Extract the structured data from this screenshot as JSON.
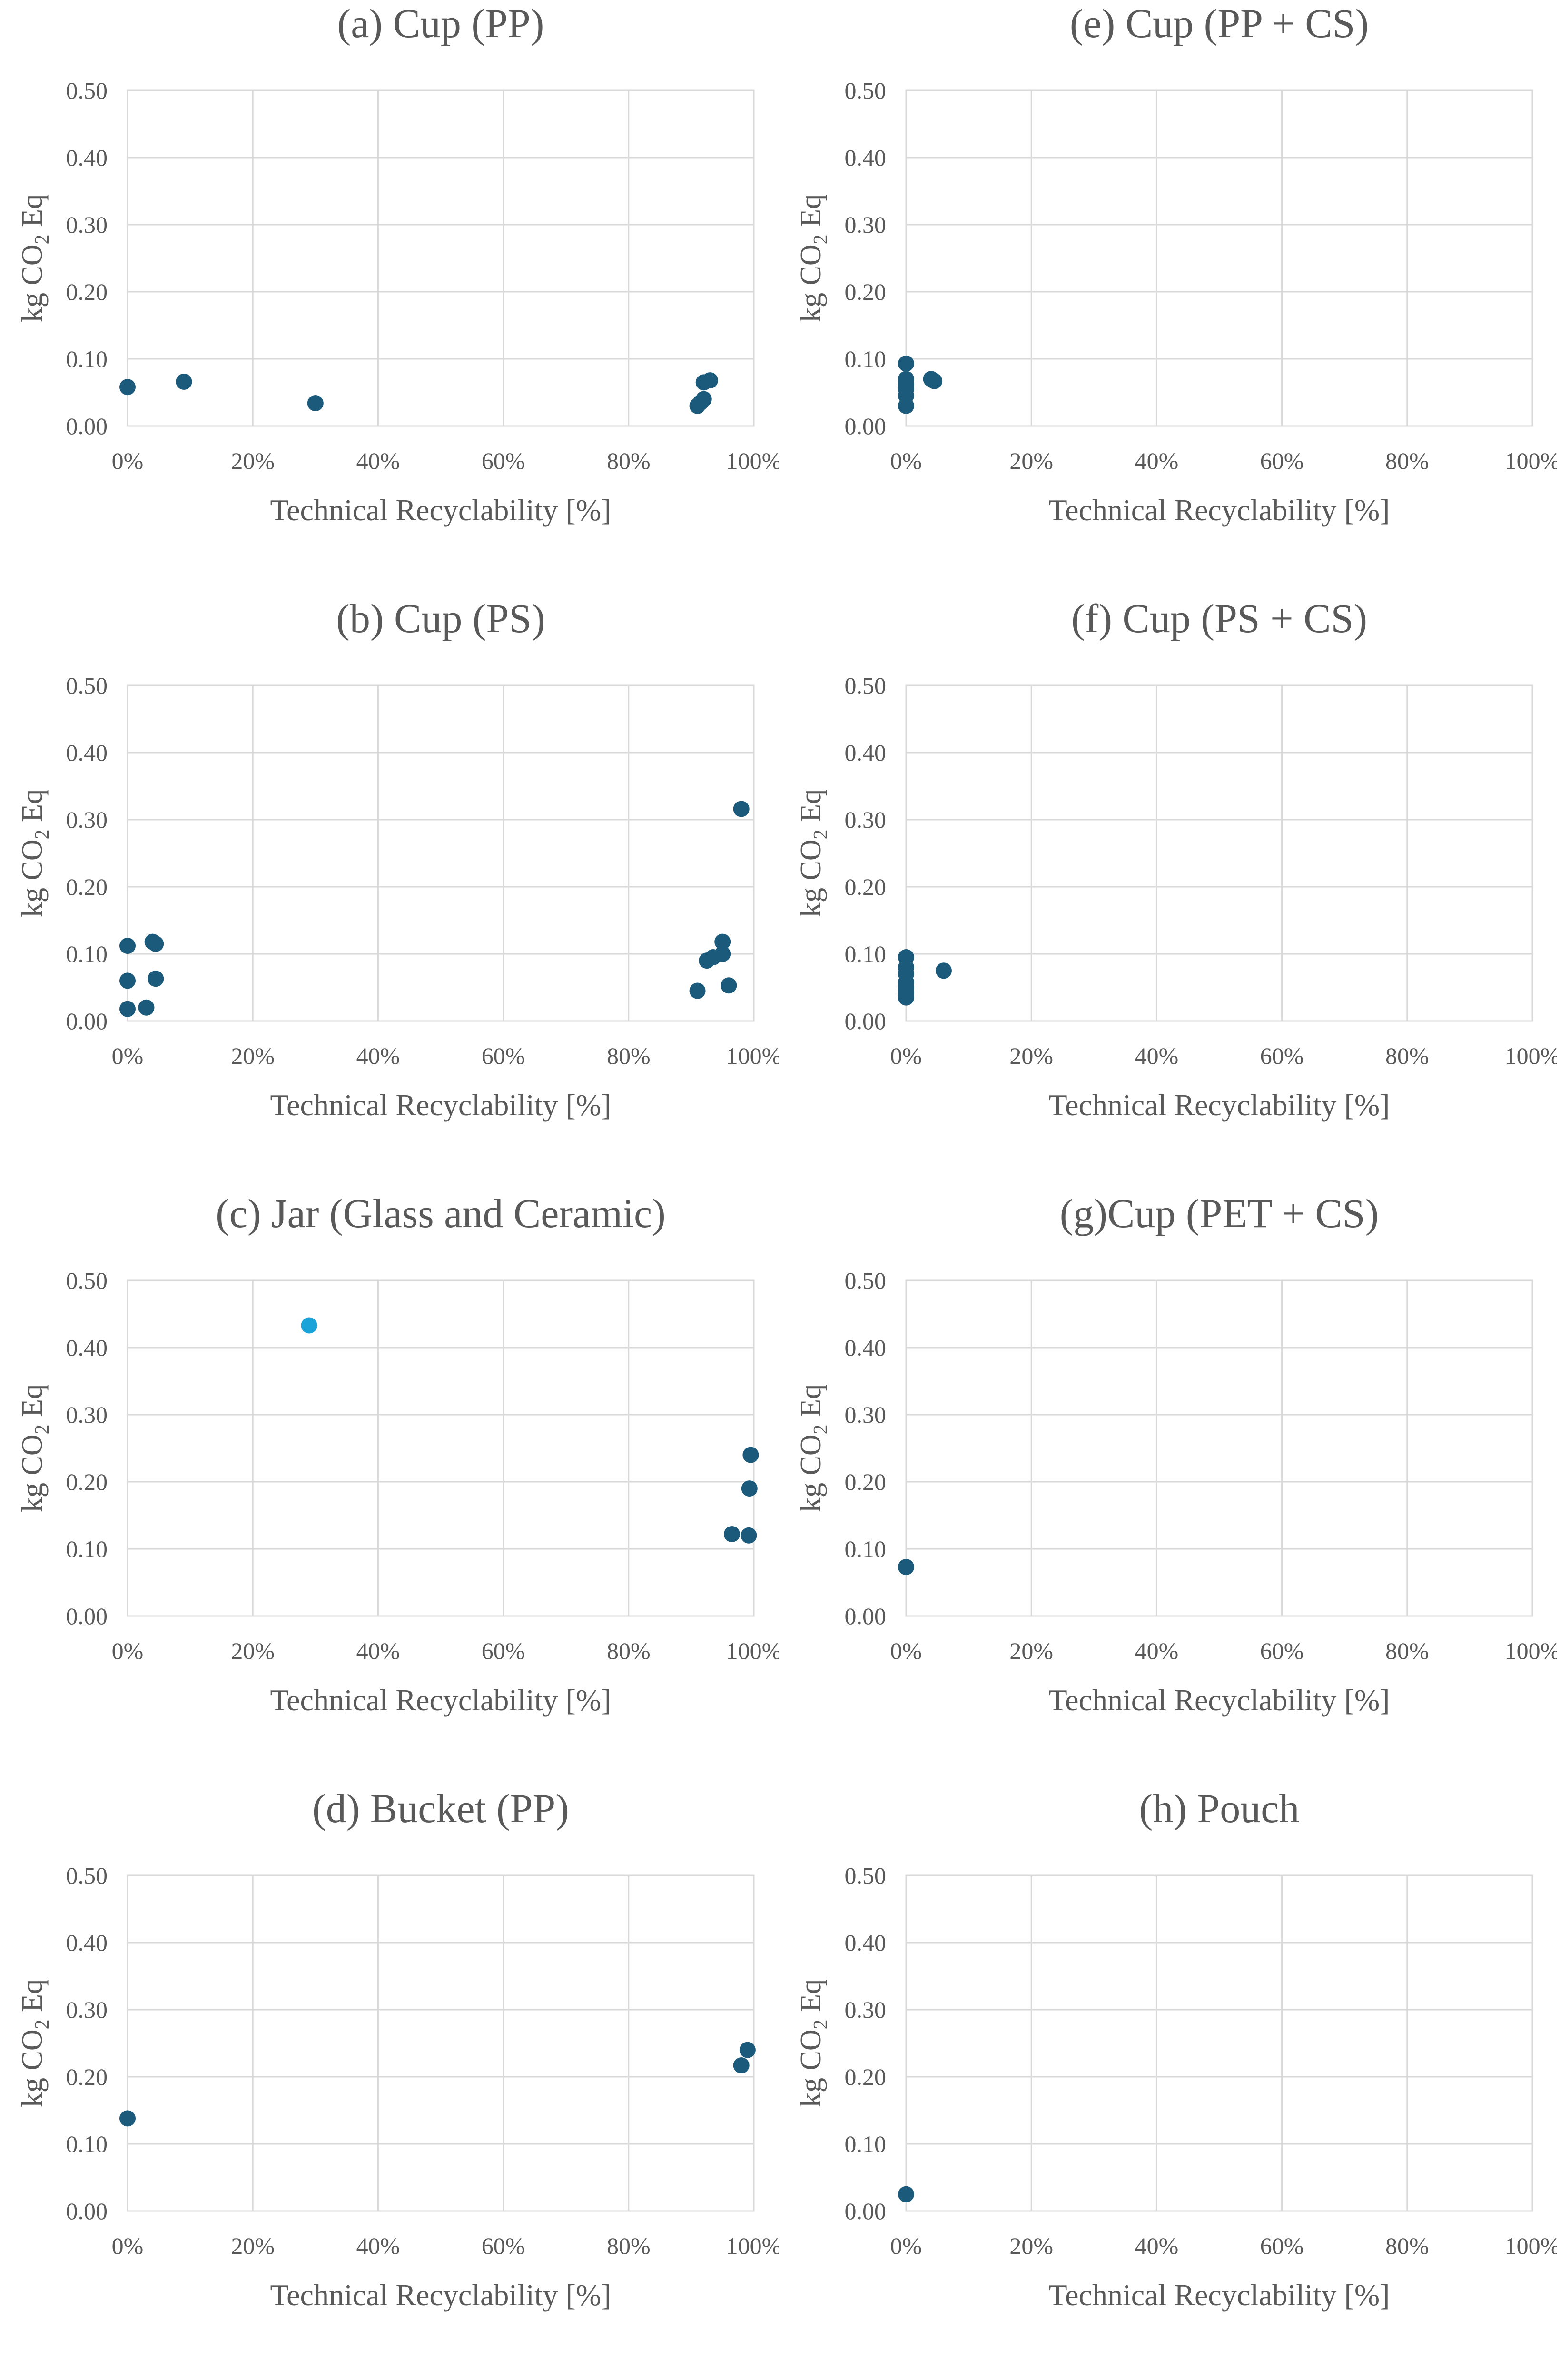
{
  "chart_data": [
    {
      "type": "scatter",
      "title": "(a) Cup (PP)",
      "xlabel": "Technical Recyclability [%]",
      "ylabel": "kg CO2 Eq",
      "ylabel_main": "kg CO",
      "ylabel_sub": "2",
      "ylabel_tail": " Eq",
      "xlim": [
        0,
        100
      ],
      "ylim": [
        0,
        0.5
      ],
      "x_ticks": [
        "0%",
        "20%",
        "40%",
        "60%",
        "80%",
        "100%"
      ],
      "y_ticks": [
        "0.00",
        "0.10",
        "0.20",
        "0.30",
        "0.40",
        "0.50"
      ],
      "grid": true,
      "series": [
        {
          "name": "Cup (PP)",
          "color": "#1b5a7a",
          "x": [
            0,
            9,
            30,
            91,
            91.5,
            92,
            92,
            93
          ],
          "y": [
            0.058,
            0.066,
            0.034,
            0.03,
            0.035,
            0.04,
            0.065,
            0.068
          ]
        }
      ]
    },
    {
      "type": "scatter",
      "title": "(e) Cup (PP + CS)",
      "xlabel": "Technical Recyclability [%]",
      "ylabel": "kg CO2 Eq",
      "ylabel_main": "kg CO",
      "ylabel_sub": "2",
      "ylabel_tail": " Eq",
      "xlim": [
        0,
        100
      ],
      "ylim": [
        0,
        0.5
      ],
      "x_ticks": [
        "0%",
        "20%",
        "40%",
        "60%",
        "80%",
        "100%"
      ],
      "y_ticks": [
        "0.00",
        "0.10",
        "0.20",
        "0.30",
        "0.40",
        "0.50"
      ],
      "grid": true,
      "series": [
        {
          "name": "Cup (PP + CS)",
          "color": "#1b5a7a",
          "x": [
            0,
            0,
            0,
            0,
            0,
            0,
            4,
            4.5
          ],
          "y": [
            0.093,
            0.07,
            0.062,
            0.055,
            0.045,
            0.03,
            0.07,
            0.067
          ]
        }
      ]
    },
    {
      "type": "scatter",
      "title": "(b) Cup (PS)",
      "xlabel": "Technical Recyclability [%]",
      "ylabel": "kg CO2 Eq",
      "ylabel_main": "kg CO",
      "ylabel_sub": "2",
      "ylabel_tail": " Eq",
      "xlim": [
        0,
        100
      ],
      "ylim": [
        0,
        0.5
      ],
      "x_ticks": [
        "0%",
        "20%",
        "40%",
        "60%",
        "80%",
        "100%"
      ],
      "y_ticks": [
        "0.00",
        "0.10",
        "0.20",
        "0.30",
        "0.40",
        "0.50"
      ],
      "grid": true,
      "series": [
        {
          "name": "Cup (PS)",
          "color": "#1b5a7a",
          "x": [
            0,
            0,
            0,
            3,
            4,
            4.5,
            4.5,
            91,
            92.5,
            93.5,
            95,
            95,
            96,
            98
          ],
          "y": [
            0.112,
            0.06,
            0.018,
            0.02,
            0.118,
            0.115,
            0.063,
            0.045,
            0.09,
            0.095,
            0.118,
            0.1,
            0.053,
            0.316
          ]
        }
      ]
    },
    {
      "type": "scatter",
      "title": "(f) Cup (PS + CS)",
      "xlabel": "Technical Recyclability [%]",
      "ylabel": "kg CO2 Eq",
      "ylabel_main": "kg CO",
      "ylabel_sub": "2",
      "ylabel_tail": " Eq",
      "xlim": [
        0,
        100
      ],
      "ylim": [
        0,
        0.5
      ],
      "x_ticks": [
        "0%",
        "20%",
        "40%",
        "60%",
        "80%",
        "100%"
      ],
      "y_ticks": [
        "0.00",
        "0.10",
        "0.20",
        "0.30",
        "0.40",
        "0.50"
      ],
      "grid": true,
      "series": [
        {
          "name": "Cup (PS + CS)",
          "color": "#1b5a7a",
          "x": [
            0,
            0,
            0,
            0,
            0,
            0,
            0,
            6
          ],
          "y": [
            0.095,
            0.08,
            0.07,
            0.058,
            0.05,
            0.042,
            0.035,
            0.075
          ]
        }
      ]
    },
    {
      "type": "scatter",
      "title": "(c) Jar (Glass and Ceramic)",
      "xlabel": "Technical Recyclability [%]",
      "ylabel": "kg CO2 Eq",
      "ylabel_main": "kg CO",
      "ylabel_sub": "2",
      "ylabel_tail": " Eq",
      "xlim": [
        0,
        100
      ],
      "ylim": [
        0,
        0.5
      ],
      "x_ticks": [
        "0%",
        "20%",
        "40%",
        "60%",
        "80%",
        "100%"
      ],
      "y_ticks": [
        "0.00",
        "0.10",
        "0.20",
        "0.30",
        "0.40",
        "0.50"
      ],
      "grid": true,
      "series": [
        {
          "name": "Glass",
          "color": "#1b5a7a",
          "x": [
            96.5,
            99.2,
            99.3,
            99.5
          ],
          "y": [
            0.122,
            0.12,
            0.19,
            0.24
          ]
        },
        {
          "name": "Ceramic",
          "color": "#1aa3d8",
          "x": [
            29
          ],
          "y": [
            0.433
          ]
        }
      ]
    },
    {
      "type": "scatter",
      "title": "(g)Cup (PET + CS)",
      "xlabel": "Technical Recyclability [%]",
      "ylabel": "kg CO2 Eq",
      "ylabel_main": "kg CO",
      "ylabel_sub": "2",
      "ylabel_tail": " Eq",
      "xlim": [
        0,
        100
      ],
      "ylim": [
        0,
        0.5
      ],
      "x_ticks": [
        "0%",
        "20%",
        "40%",
        "60%",
        "80%",
        "100%"
      ],
      "y_ticks": [
        "0.00",
        "0.10",
        "0.20",
        "0.30",
        "0.40",
        "0.50"
      ],
      "grid": true,
      "series": [
        {
          "name": "Cup (PET + CS)",
          "color": "#1b5a7a",
          "x": [
            0
          ],
          "y": [
            0.073
          ]
        }
      ]
    },
    {
      "type": "scatter",
      "title": "(d) Bucket (PP)",
      "xlabel": "Technical Recyclability [%]",
      "ylabel": "kg CO2 Eq",
      "ylabel_main": "kg CO",
      "ylabel_sub": "2",
      "ylabel_tail": " Eq",
      "xlim": [
        0,
        100
      ],
      "ylim": [
        0,
        0.5
      ],
      "x_ticks": [
        "0%",
        "20%",
        "40%",
        "60%",
        "80%",
        "100%"
      ],
      "y_ticks": [
        "0.00",
        "0.10",
        "0.20",
        "0.30",
        "0.40",
        "0.50"
      ],
      "grid": true,
      "series": [
        {
          "name": "Bucket (PP)",
          "color": "#1b5a7a",
          "x": [
            0,
            98,
            99
          ],
          "y": [
            0.138,
            0.217,
            0.24
          ]
        }
      ]
    },
    {
      "type": "scatter",
      "title": "(h) Pouch",
      "xlabel": "Technical Recyclability [%]",
      "ylabel": "kg CO2 Eq",
      "ylabel_main": "kg CO",
      "ylabel_sub": "2",
      "ylabel_tail": " Eq",
      "xlim": [
        0,
        100
      ],
      "ylim": [
        0,
        0.5
      ],
      "x_ticks": [
        "0%",
        "20%",
        "40%",
        "60%",
        "80%",
        "100%"
      ],
      "y_ticks": [
        "0.00",
        "0.10",
        "0.20",
        "0.30",
        "0.40",
        "0.50"
      ],
      "grid": true,
      "series": [
        {
          "name": "Pouch",
          "color": "#1b5a7a",
          "x": [
            0
          ],
          "y": [
            0.025
          ]
        }
      ]
    }
  ]
}
